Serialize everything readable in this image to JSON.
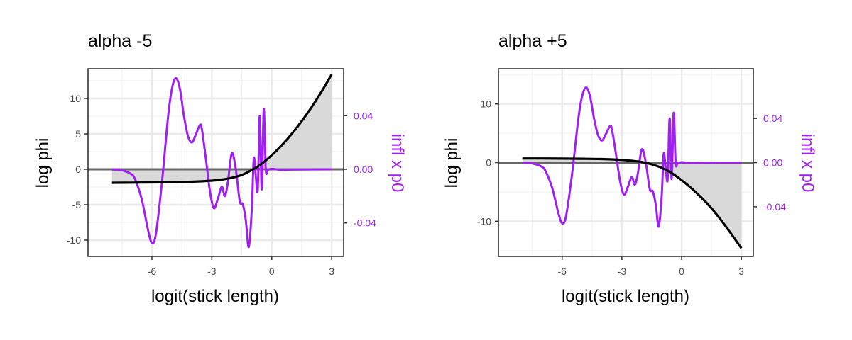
{
  "colors": {
    "phi_line": "#000000",
    "infl_line": "#a020f0",
    "shade": "#d9d9d9",
    "zero_line": "#666666",
    "grid_major": "#ebebeb",
    "grid_minor": "#f2f2f2",
    "panel_border": "#333333"
  },
  "chart_data": [
    {
      "type": "line",
      "title": "alpha -5",
      "xlabel": "logit(stick length)",
      "ylabel": "log phi",
      "y2label": "infl x p0",
      "xlim": [
        -9.2,
        3.6
      ],
      "ylim": [
        -12.3,
        14.2
      ],
      "y2lim": [
        -0.065,
        0.075
      ],
      "xticks": [
        -6,
        -3,
        0,
        3
      ],
      "xtick_labels": [
        "-6",
        "-3",
        "0",
        "3"
      ],
      "yticks": [
        -10,
        -5,
        0,
        5,
        10
      ],
      "ytick_labels": [
        "-10",
        "-5",
        "0",
        "5",
        "10"
      ],
      "y2ticks": [
        -0.04,
        0,
        0.04
      ],
      "y2tick_labels": [
        "-0.04",
        "0.00",
        "0.04"
      ],
      "grid": true,
      "series": [
        {
          "axis": "left",
          "style": "shaded",
          "x": [
            -8,
            -7,
            -6,
            -5,
            -4,
            -3,
            -2.5,
            -2,
            -1.5,
            -1,
            -0.5,
            0,
            0.5,
            1,
            1.5,
            2,
            2.5,
            3
          ],
          "values": [
            -1.9,
            -1.88,
            -1.85,
            -1.82,
            -1.75,
            -1.6,
            -1.45,
            -1.2,
            -0.8,
            -0.1,
            0.8,
            2.0,
            3.4,
            5.0,
            6.8,
            8.8,
            11.0,
            13.4
          ]
        },
        {
          "axis": "right",
          "style": "line",
          "x": [
            -8,
            -7.5,
            -7,
            -6.8,
            -6.5,
            -6.2,
            -6.0,
            -5.8,
            -5.5,
            -5.2,
            -5.0,
            -4.8,
            -4.6,
            -4.4,
            -4.2,
            -4.0,
            -3.8,
            -3.6,
            -3.5,
            -3.3,
            -3.1,
            -2.9,
            -2.7,
            -2.5,
            -2.35,
            -2.2,
            -2.0,
            -1.8,
            -1.6,
            -1.45,
            -1.3,
            -1.15,
            -1.0,
            -0.9,
            -0.8,
            -0.7,
            -0.6,
            -0.5,
            -0.4,
            -0.3,
            -0.2,
            0,
            0.5,
            1,
            2,
            3
          ],
          "values": [
            -0.0002,
            -0.0008,
            -0.004,
            -0.009,
            -0.023,
            -0.045,
            -0.055,
            -0.048,
            -0.01,
            0.038,
            0.06,
            0.068,
            0.06,
            0.04,
            0.025,
            0.02,
            0.026,
            0.033,
            0.03,
            0.008,
            -0.016,
            -0.029,
            -0.022,
            -0.013,
            -0.02,
            -0.01,
            0.012,
            0.0,
            -0.024,
            -0.026,
            -0.038,
            -0.058,
            -0.03,
            0.008,
            -0.005,
            -0.015,
            0.04,
            -0.015,
            0.045,
            0.0,
            -0.0005,
            0.0003,
            -0.0005,
            -0.0002,
            -0.0001,
            0
          ]
        }
      ]
    },
    {
      "type": "line",
      "title": "alpha +5",
      "xlabel": "logit(stick length)",
      "ylabel": "log phi",
      "y2label": "infl x p0",
      "xlim": [
        -9.2,
        3.6
      ],
      "ylim": [
        -16.0,
        16.0
      ],
      "y2lim": [
        -0.085,
        0.085
      ],
      "xticks": [
        -6,
        -3,
        0,
        3
      ],
      "xtick_labels": [
        "-6",
        "-3",
        "0",
        "3"
      ],
      "yticks": [
        -10,
        0,
        10
      ],
      "ytick_labels": [
        "-10",
        "0",
        "10"
      ],
      "y2ticks": [
        -0.04,
        0,
        0.04
      ],
      "y2tick_labels": [
        "-0.04",
        "0.00",
        "0.04"
      ],
      "grid": true,
      "series": [
        {
          "axis": "left",
          "style": "shaded",
          "x": [
            -8,
            -7,
            -6,
            -5,
            -4,
            -3,
            -2.5,
            -2,
            -1.5,
            -1,
            -0.5,
            0,
            0.5,
            1,
            1.5,
            2,
            2.5,
            3
          ],
          "values": [
            0.7,
            0.7,
            0.68,
            0.65,
            0.6,
            0.45,
            0.3,
            0.1,
            -0.3,
            -0.9,
            -1.8,
            -3.0,
            -4.4,
            -6.0,
            -7.8,
            -9.9,
            -12.2,
            -14.6
          ]
        },
        {
          "axis": "right",
          "style": "line",
          "x": [
            -8,
            -7.5,
            -7,
            -6.8,
            -6.5,
            -6.2,
            -6.0,
            -5.8,
            -5.5,
            -5.2,
            -5.0,
            -4.8,
            -4.6,
            -4.4,
            -4.2,
            -4.0,
            -3.8,
            -3.6,
            -3.5,
            -3.3,
            -3.1,
            -2.9,
            -2.7,
            -2.5,
            -2.35,
            -2.2,
            -2.0,
            -1.8,
            -1.6,
            -1.45,
            -1.3,
            -1.15,
            -1.0,
            -0.9,
            -0.8,
            -0.7,
            -0.6,
            -0.5,
            -0.4,
            -0.3,
            -0.2,
            0,
            0.5,
            1,
            2,
            3
          ],
          "values": [
            -0.0002,
            -0.0008,
            -0.004,
            -0.009,
            -0.023,
            -0.045,
            -0.055,
            -0.048,
            -0.01,
            0.038,
            0.06,
            0.068,
            0.06,
            0.04,
            0.025,
            0.02,
            0.026,
            0.033,
            0.03,
            0.008,
            -0.016,
            -0.029,
            -0.022,
            -0.013,
            -0.02,
            -0.01,
            0.012,
            0.0,
            -0.024,
            -0.026,
            -0.038,
            -0.058,
            -0.03,
            0.008,
            -0.005,
            -0.015,
            0.04,
            -0.015,
            0.045,
            0.0,
            -0.0005,
            0.0003,
            -0.0005,
            -0.0002,
            -0.0001,
            0
          ]
        }
      ]
    }
  ]
}
